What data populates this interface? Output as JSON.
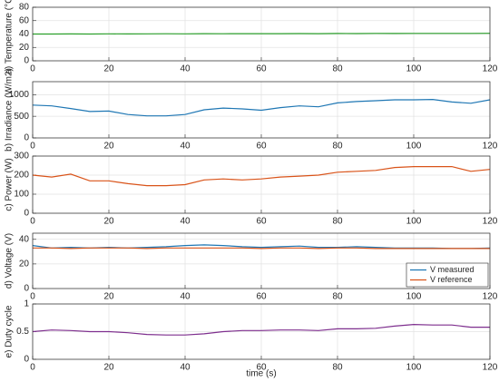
{
  "chart_data": [
    {
      "type": "line",
      "ylabel": "a) Temperature (°C)",
      "x": [
        0,
        5,
        10,
        15,
        20,
        25,
        30,
        35,
        40,
        45,
        50,
        55,
        60,
        65,
        70,
        75,
        80,
        85,
        90,
        95,
        100,
        105,
        110,
        115,
        120
      ],
      "series": [
        {
          "color": "#2ca02c",
          "values": [
            40,
            40,
            40.2,
            40,
            40.3,
            40.2,
            40.3,
            40.4,
            40.3,
            40.5,
            40.4,
            40.5,
            40.6,
            40.5,
            40.7,
            40.6,
            40.8,
            40.7,
            40.9,
            40.8,
            41,
            40.9,
            41,
            41,
            41.1
          ]
        }
      ],
      "xlim": [
        0,
        120
      ],
      "xticks": [
        0,
        20,
        40,
        60,
        80,
        100,
        120
      ],
      "ylim": [
        0,
        80
      ],
      "yticks": [
        0,
        20,
        40,
        60,
        80
      ],
      "grid": true
    },
    {
      "type": "line",
      "ylabel": "b) Irradiance (W/m2)",
      "x": [
        0,
        5,
        10,
        15,
        20,
        25,
        30,
        35,
        40,
        45,
        50,
        55,
        60,
        65,
        70,
        75,
        80,
        85,
        90,
        95,
        100,
        105,
        110,
        115,
        120
      ],
      "series": [
        {
          "color": "#1f77b4",
          "values": [
            760,
            740,
            680,
            610,
            620,
            540,
            510,
            510,
            540,
            650,
            690,
            670,
            640,
            700,
            740,
            720,
            810,
            840,
            860,
            880,
            880,
            890,
            830,
            800,
            880
          ]
        }
      ],
      "xlim": [
        0,
        120
      ],
      "xticks": [
        0,
        20,
        40,
        60,
        80,
        100,
        120
      ],
      "ylim": [
        0,
        1300
      ],
      "yticks": [
        0,
        500,
        1000
      ],
      "grid": true
    },
    {
      "type": "line",
      "ylabel": "c) Power (W)",
      "x": [
        0,
        5,
        10,
        15,
        20,
        25,
        30,
        35,
        40,
        45,
        50,
        55,
        60,
        65,
        70,
        75,
        80,
        85,
        90,
        95,
        100,
        105,
        110,
        115,
        120
      ],
      "series": [
        {
          "color": "#d95319",
          "values": [
            200,
            190,
            205,
            170,
            170,
            155,
            145,
            145,
            150,
            175,
            180,
            175,
            180,
            190,
            195,
            200,
            215,
            220,
            225,
            240,
            245,
            245,
            245,
            220,
            230
          ]
        }
      ],
      "xlim": [
        0,
        120
      ],
      "xticks": [
        0,
        20,
        40,
        60,
        80,
        100,
        120
      ],
      "ylim": [
        0,
        300
      ],
      "yticks": [
        0,
        100,
        200,
        300
      ],
      "grid": true
    },
    {
      "type": "line",
      "ylabel": "d) Voltage (V)",
      "x": [
        0,
        5,
        10,
        15,
        20,
        25,
        30,
        35,
        40,
        45,
        50,
        55,
        60,
        65,
        70,
        75,
        80,
        85,
        90,
        95,
        100,
        105,
        110,
        115,
        120
      ],
      "series": [
        {
          "name": "V measured",
          "color": "#1f77b4",
          "values": [
            35,
            33,
            33.5,
            33,
            33.5,
            33,
            33.5,
            34,
            35,
            35.5,
            35,
            34,
            33.5,
            34,
            34.5,
            33.5,
            33.5,
            34,
            33.5,
            33,
            33,
            33,
            32.5,
            32.5,
            33
          ]
        },
        {
          "name": "V reference",
          "color": "#d95319",
          "values": [
            33,
            33,
            32.5,
            33,
            33,
            33,
            32.5,
            33,
            33,
            33,
            33,
            33,
            32.5,
            33,
            33,
            32.5,
            33,
            33,
            32.5,
            32.5,
            32.5,
            32.5,
            32.5,
            32.5,
            32.5
          ]
        }
      ],
      "legend": "lower right",
      "xlim": [
        0,
        120
      ],
      "xticks": [
        0,
        20,
        40,
        60,
        80,
        100,
        120
      ],
      "ylim": [
        0,
        45
      ],
      "yticks": [
        0,
        20,
        40
      ],
      "grid": true
    },
    {
      "type": "line",
      "ylabel": "e) Duty cycle",
      "xlabel": "time (s)",
      "x": [
        0,
        5,
        10,
        15,
        20,
        25,
        30,
        35,
        40,
        45,
        50,
        55,
        60,
        65,
        70,
        75,
        80,
        85,
        90,
        95,
        100,
        105,
        110,
        115,
        120
      ],
      "series": [
        {
          "color": "#7e2f8e",
          "values": [
            0.5,
            0.53,
            0.52,
            0.5,
            0.5,
            0.48,
            0.45,
            0.44,
            0.44,
            0.46,
            0.5,
            0.52,
            0.52,
            0.53,
            0.53,
            0.52,
            0.55,
            0.55,
            0.56,
            0.6,
            0.63,
            0.62,
            0.62,
            0.58,
            0.58
          ]
        }
      ],
      "xlim": [
        0,
        120
      ],
      "xticks": [
        0,
        20,
        40,
        60,
        80,
        100,
        120
      ],
      "ylim": [
        0,
        1
      ],
      "yticks": [
        0,
        0.5,
        1
      ],
      "grid": true
    }
  ]
}
